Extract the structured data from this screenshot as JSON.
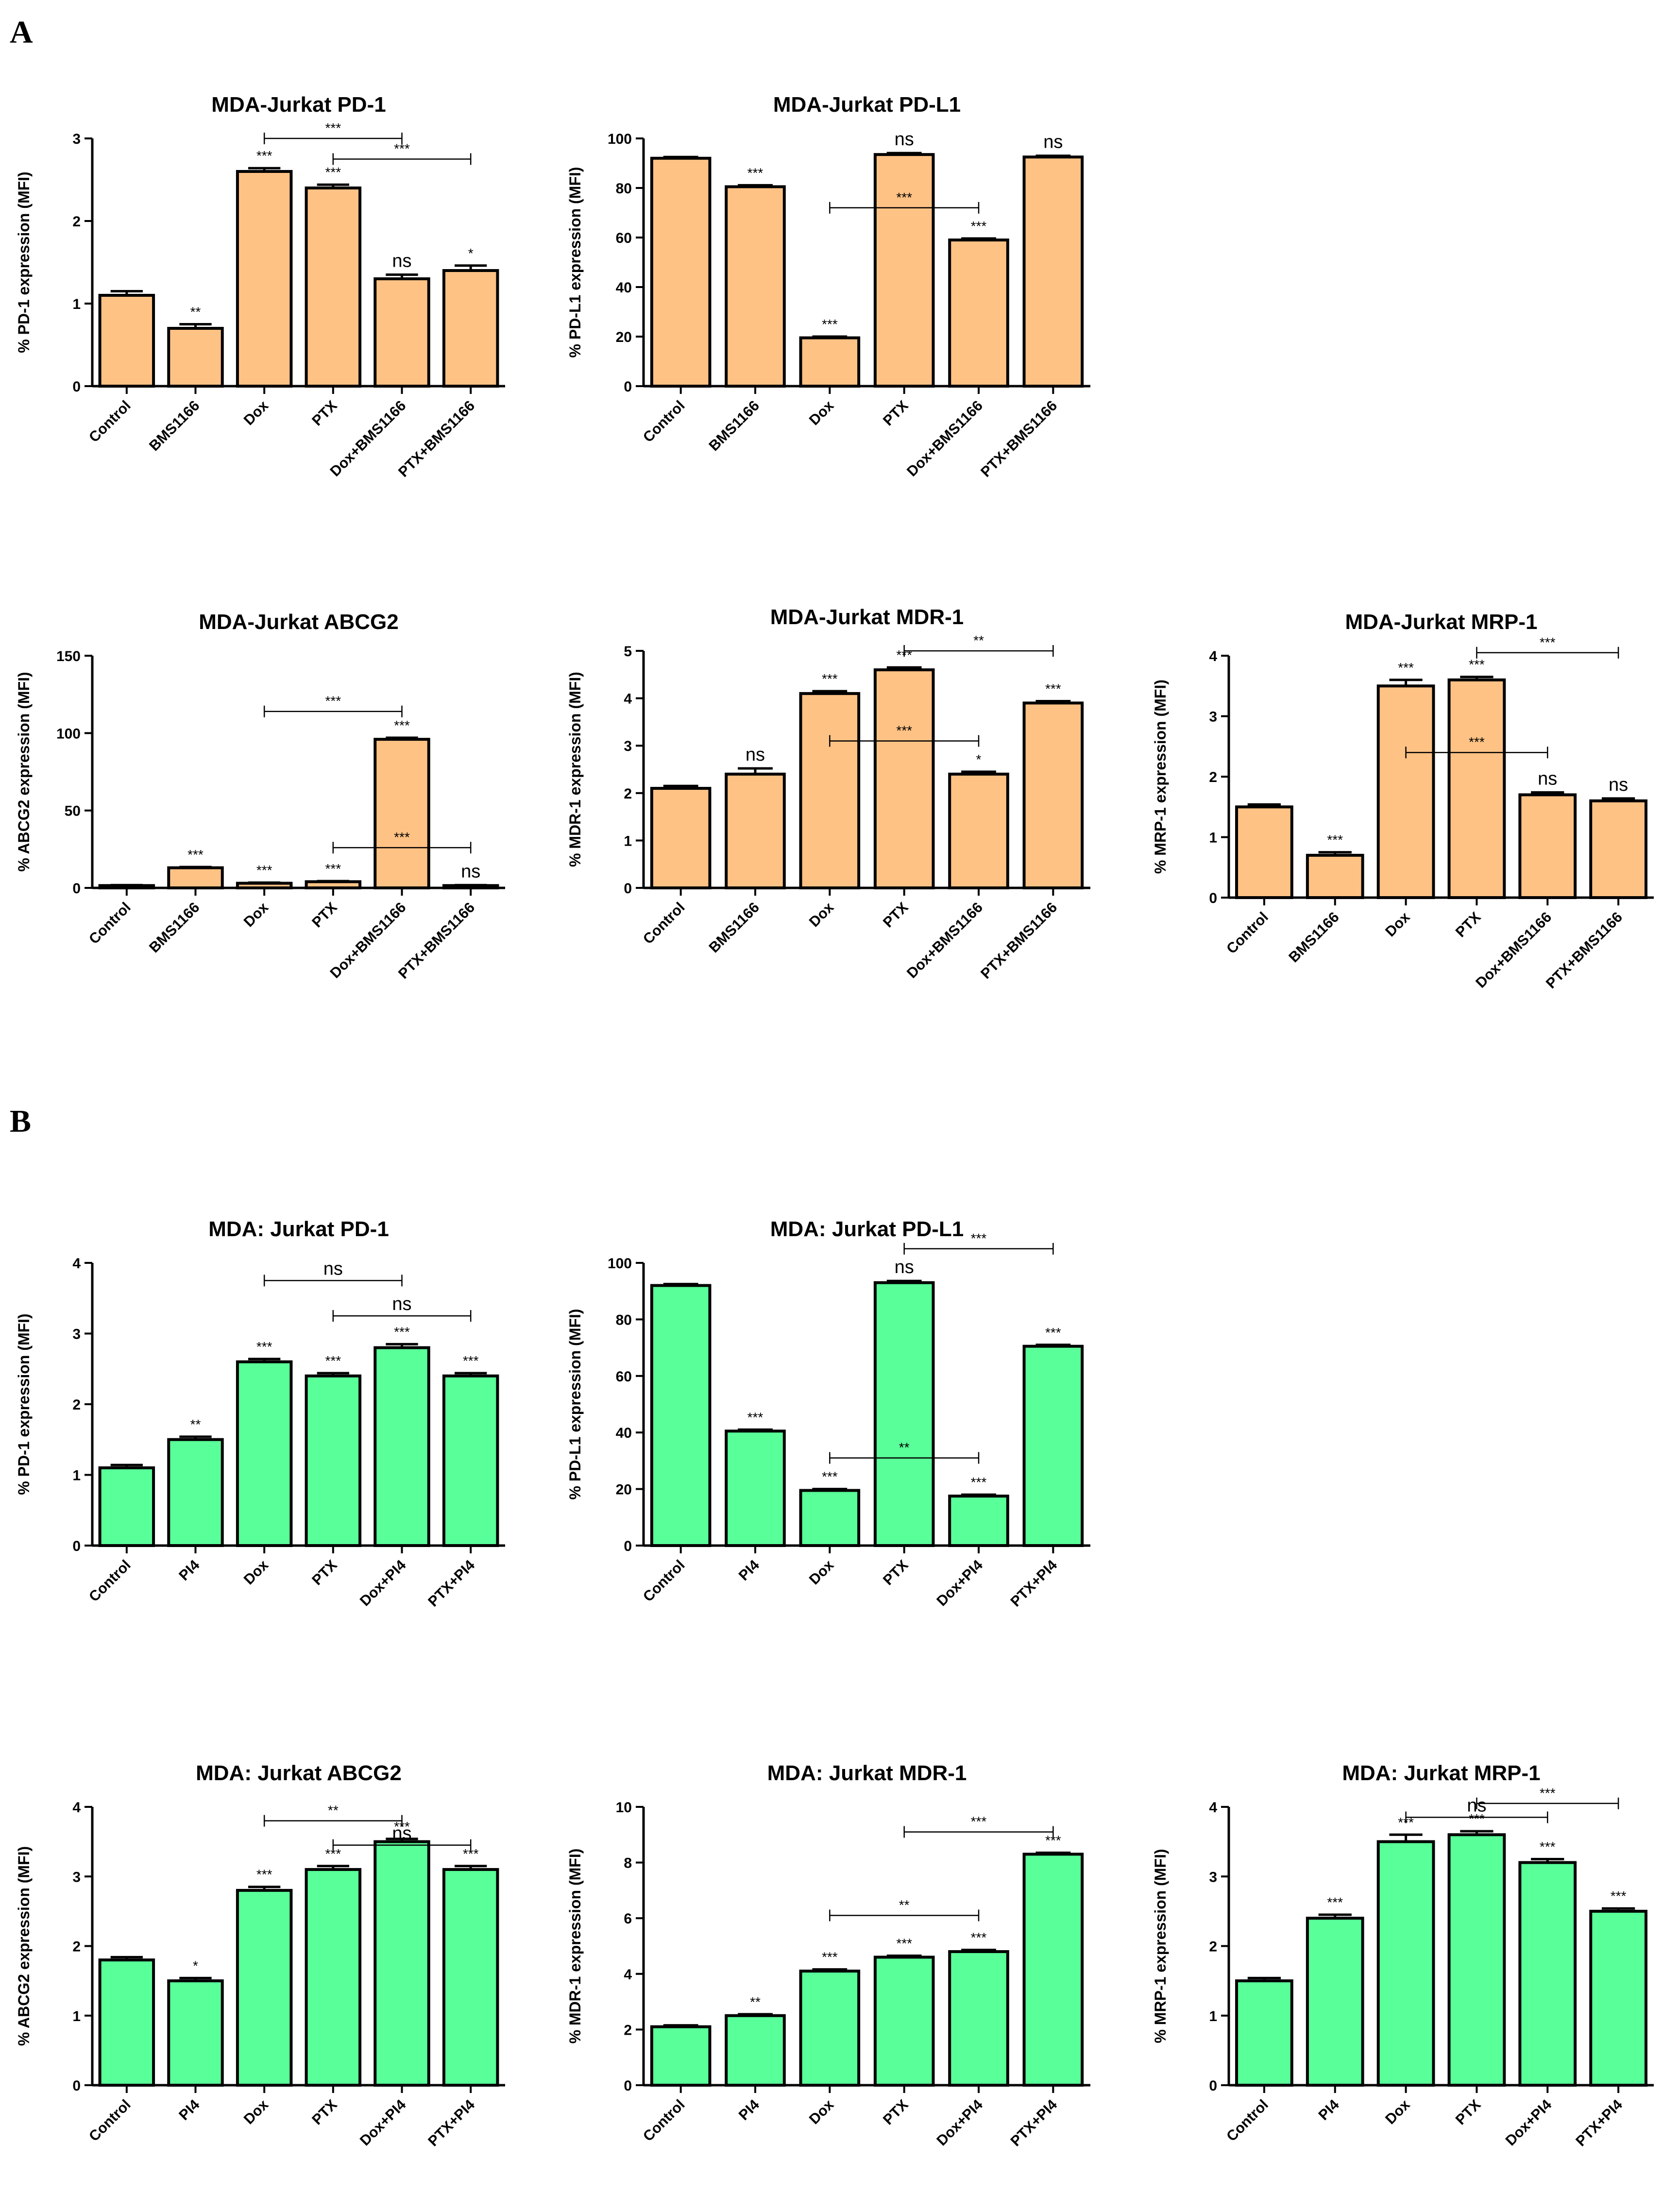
{
  "panels": [
    {
      "label": "A"
    },
    {
      "label": "B"
    }
  ],
  "chart_data": [
    {
      "type": "bar",
      "panel": "A",
      "title": "MDA-Jurkat PD-1",
      "ylabel": "% PD-1 expression (MFI)",
      "ylim": [
        0,
        3
      ],
      "yticks": [
        0,
        1,
        2,
        3
      ],
      "categories": [
        "Control",
        "BMS1166",
        "Dox",
        "PTX",
        "Dox+BMS1166",
        "PTX+BMS1166"
      ],
      "values": [
        1.1,
        0.7,
        2.6,
        2.4,
        1.3,
        1.4
      ],
      "errors": [
        0.05,
        0.05,
        0.04,
        0.04,
        0.05,
        0.06
      ],
      "significance": [
        "",
        "**",
        "***",
        "***",
        "ns",
        "*"
      ],
      "comparisons": [
        {
          "from": 2,
          "to": 4,
          "label": "***",
          "y": 3.0
        },
        {
          "from": 3,
          "to": 5,
          "label": "***",
          "y": 2.75
        }
      ],
      "color": "#FFC285"
    },
    {
      "type": "bar",
      "panel": "A",
      "title": "MDA-Jurkat PD-L1",
      "ylabel": "% PD-L1 expression (MFI)",
      "ylim": [
        0,
        100
      ],
      "yticks": [
        0,
        20,
        40,
        60,
        80,
        100
      ],
      "categories": [
        "Control",
        "BMS1166",
        "Dox",
        "PTX",
        "Dox+BMS1166",
        "PTX+BMS1166"
      ],
      "values": [
        92,
        80.5,
        19.5,
        93.5,
        59,
        92.5
      ],
      "errors": [
        0.5,
        0.6,
        0.5,
        0.6,
        0.6,
        0.5
      ],
      "significance": [
        "",
        "***",
        "***",
        "ns",
        "***",
        "ns"
      ],
      "comparisons": [
        {
          "from": 2,
          "to": 4,
          "label": "***",
          "y": 72
        }
      ],
      "color": "#FFC285"
    },
    {
      "type": "bar",
      "panel": "A",
      "title": "MDA-Jurkat ABCG2",
      "ylabel": "% ABCG2 expression (MFI)",
      "ylim": [
        0,
        150
      ],
      "yticks": [
        0,
        50,
        100,
        150
      ],
      "categories": [
        "Control",
        "BMS1166",
        "Dox",
        "PTX",
        "Dox+BMS1166",
        "PTX+BMS1166"
      ],
      "values": [
        1.5,
        13,
        3,
        4,
        96,
        1.5
      ],
      "errors": [
        0.3,
        0.5,
        0.4,
        0.4,
        1,
        0.3
      ],
      "significance": [
        "",
        "***",
        "***",
        "***",
        "***",
        "ns"
      ],
      "comparisons": [
        {
          "from": 2,
          "to": 4,
          "label": "***",
          "y": 114
        },
        {
          "from": 3,
          "to": 5,
          "label": "***",
          "y": 26
        }
      ],
      "color": "#FFC285"
    },
    {
      "type": "bar",
      "panel": "A",
      "title": "MDA-Jurkat MDR-1",
      "ylabel": "% MDR-1 expression (MFI)",
      "ylim": [
        0,
        5
      ],
      "yticks": [
        0,
        1,
        2,
        3,
        4,
        5
      ],
      "categories": [
        "Control",
        "BMS1166",
        "Dox",
        "PTX",
        "Dox+BMS1166",
        "PTX+BMS1166"
      ],
      "values": [
        2.1,
        2.4,
        4.1,
        4.6,
        2.4,
        3.9
      ],
      "errors": [
        0.05,
        0.12,
        0.05,
        0.05,
        0.05,
        0.04
      ],
      "significance": [
        "",
        "ns",
        "***",
        "***",
        "*",
        "***"
      ],
      "comparisons": [
        {
          "from": 3,
          "to": 5,
          "label": "**",
          "y": 5.0
        },
        {
          "from": 2,
          "to": 4,
          "label": "***",
          "y": 3.1
        }
      ],
      "color": "#FFC285"
    },
    {
      "type": "bar",
      "panel": "A",
      "title": "MDA-Jurkat MRP-1",
      "ylabel": "% MRP-1 expression (MFI)",
      "ylim": [
        0,
        4
      ],
      "yticks": [
        0,
        1,
        2,
        3,
        4
      ],
      "categories": [
        "Control",
        "BMS1166",
        "Dox",
        "PTX",
        "Dox+BMS1166",
        "PTX+BMS1166"
      ],
      "values": [
        1.5,
        0.7,
        3.5,
        3.6,
        1.7,
        1.6
      ],
      "errors": [
        0.04,
        0.05,
        0.1,
        0.05,
        0.04,
        0.04
      ],
      "significance": [
        "",
        "***",
        "***",
        "***",
        "ns",
        "ns"
      ],
      "comparisons": [
        {
          "from": 3,
          "to": 5,
          "label": "***",
          "y": 4.05
        },
        {
          "from": 2,
          "to": 4,
          "label": "***",
          "y": 2.4
        }
      ],
      "color": "#FFC285"
    },
    {
      "type": "bar",
      "panel": "B",
      "title": "MDA: Jurkat PD-1",
      "ylabel": "% PD-1 expression (MFI)",
      "ylim": [
        0,
        4
      ],
      "yticks": [
        0,
        1,
        2,
        3,
        4
      ],
      "categories": [
        "Control",
        "PI4",
        "Dox",
        "PTX",
        "Dox+PI4",
        "PTX+PI4"
      ],
      "values": [
        1.1,
        1.5,
        2.6,
        2.4,
        2.8,
        2.4
      ],
      "errors": [
        0.04,
        0.04,
        0.04,
        0.04,
        0.05,
        0.04
      ],
      "significance": [
        "",
        "**",
        "***",
        "***",
        "***",
        "***"
      ],
      "comparisons": [
        {
          "from": 2,
          "to": 4,
          "label": "ns",
          "y": 3.75
        },
        {
          "from": 3,
          "to": 5,
          "label": "ns",
          "y": 3.25
        }
      ],
      "color": "#59FF99"
    },
    {
      "type": "bar",
      "panel": "B",
      "title": "MDA: Jurkat PD-L1",
      "ylabel": "% PD-L1 expression (MFI)",
      "ylim": [
        0,
        100
      ],
      "yticks": [
        0,
        20,
        40,
        60,
        80,
        100
      ],
      "categories": [
        "Control",
        "PI4",
        "Dox",
        "PTX",
        "Dox+PI4",
        "PTX+PI4"
      ],
      "values": [
        92,
        40.5,
        19.5,
        93,
        17.5,
        70.5
      ],
      "errors": [
        0.5,
        0.5,
        0.5,
        0.6,
        0.5,
        0.5
      ],
      "significance": [
        "",
        "***",
        "***",
        "ns",
        "***",
        "***"
      ],
      "comparisons": [
        {
          "from": 3,
          "to": 5,
          "label": "***",
          "y": 105
        },
        {
          "from": 2,
          "to": 4,
          "label": "**",
          "y": 31
        }
      ],
      "color": "#59FF99"
    },
    {
      "type": "bar",
      "panel": "B",
      "title": "MDA: Jurkat ABCG2",
      "ylabel": "% ABCG2 expression (MFI)",
      "ylim": [
        0,
        4
      ],
      "yticks": [
        0,
        1,
        2,
        3,
        4
      ],
      "categories": [
        "Control",
        "PI4",
        "Dox",
        "PTX",
        "Dox+PI4",
        "PTX+PI4"
      ],
      "values": [
        1.8,
        1.5,
        2.8,
        3.1,
        3.5,
        3.1
      ],
      "errors": [
        0.04,
        0.04,
        0.05,
        0.05,
        0.04,
        0.05
      ],
      "significance": [
        "",
        "*",
        "***",
        "***",
        "***",
        "***"
      ],
      "comparisons": [
        {
          "from": 2,
          "to": 4,
          "label": "**",
          "y": 3.8
        },
        {
          "from": 3,
          "to": 5,
          "label": "ns",
          "y": 3.45
        }
      ],
      "color": "#59FF99"
    },
    {
      "type": "bar",
      "panel": "B",
      "title": "MDA: Jurkat MDR-1",
      "ylabel": "% MDR-1 expression (MFI)",
      "ylim": [
        0,
        10
      ],
      "yticks": [
        0,
        2,
        4,
        6,
        8,
        10
      ],
      "categories": [
        "Control",
        "PI4",
        "Dox",
        "PTX",
        "Dox+PI4",
        "PTX+PI4"
      ],
      "values": [
        2.1,
        2.5,
        4.1,
        4.6,
        4.8,
        8.3
      ],
      "errors": [
        0.05,
        0.05,
        0.06,
        0.05,
        0.06,
        0.05
      ],
      "significance": [
        "",
        "**",
        "***",
        "***",
        "***",
        "***"
      ],
      "comparisons": [
        {
          "from": 3,
          "to": 5,
          "label": "***",
          "y": 9.1
        },
        {
          "from": 2,
          "to": 4,
          "label": "**",
          "y": 6.1
        }
      ],
      "color": "#59FF99"
    },
    {
      "type": "bar",
      "panel": "B",
      "title": "MDA: Jurkat MRP-1",
      "ylabel": "% MRP-1 expression (MFI)",
      "ylim": [
        0,
        4
      ],
      "yticks": [
        0,
        1,
        2,
        3,
        4
      ],
      "categories": [
        "Control",
        "PI4",
        "Dox",
        "PTX",
        "Dox+PI4",
        "PTX+PI4"
      ],
      "values": [
        1.5,
        2.4,
        3.5,
        3.6,
        3.2,
        2.5
      ],
      "errors": [
        0.04,
        0.05,
        0.1,
        0.05,
        0.05,
        0.04
      ],
      "significance": [
        "",
        "***",
        "***",
        "***",
        "***",
        "***"
      ],
      "comparisons": [
        {
          "from": 2,
          "to": 4,
          "label": "ns",
          "y": 3.85
        },
        {
          "from": 3,
          "to": 5,
          "label": "***",
          "y": 4.05
        }
      ],
      "color": "#59FF99"
    }
  ]
}
